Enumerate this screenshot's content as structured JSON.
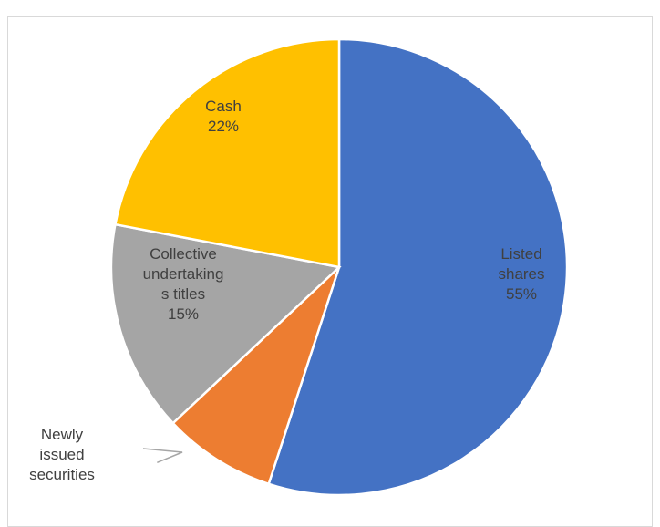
{
  "chart_data": {
    "type": "pie",
    "title": "",
    "slices": [
      {
        "label": [
          "Listed",
          "shares"
        ],
        "value_label": "55%",
        "value": 55,
        "color": "#4472C4",
        "label_color": "#404040"
      },
      {
        "label": [
          "Newly",
          "issued",
          "securities"
        ],
        "value_label": "",
        "value": 8,
        "color": "#ED7D31",
        "label_color": "#404040"
      },
      {
        "label": [
          "Collective",
          "undertaking",
          "s titles"
        ],
        "value_label": "15%",
        "value": 15,
        "color": "#A5A5A5",
        "label_color": "#404040"
      },
      {
        "label": [
          "Cash"
        ],
        "value_label": "22%",
        "value": 22,
        "color": "#FFC000",
        "label_color": "#404040"
      }
    ],
    "start_angle_deg": 0,
    "direction": "clockwise",
    "legend": "none"
  }
}
